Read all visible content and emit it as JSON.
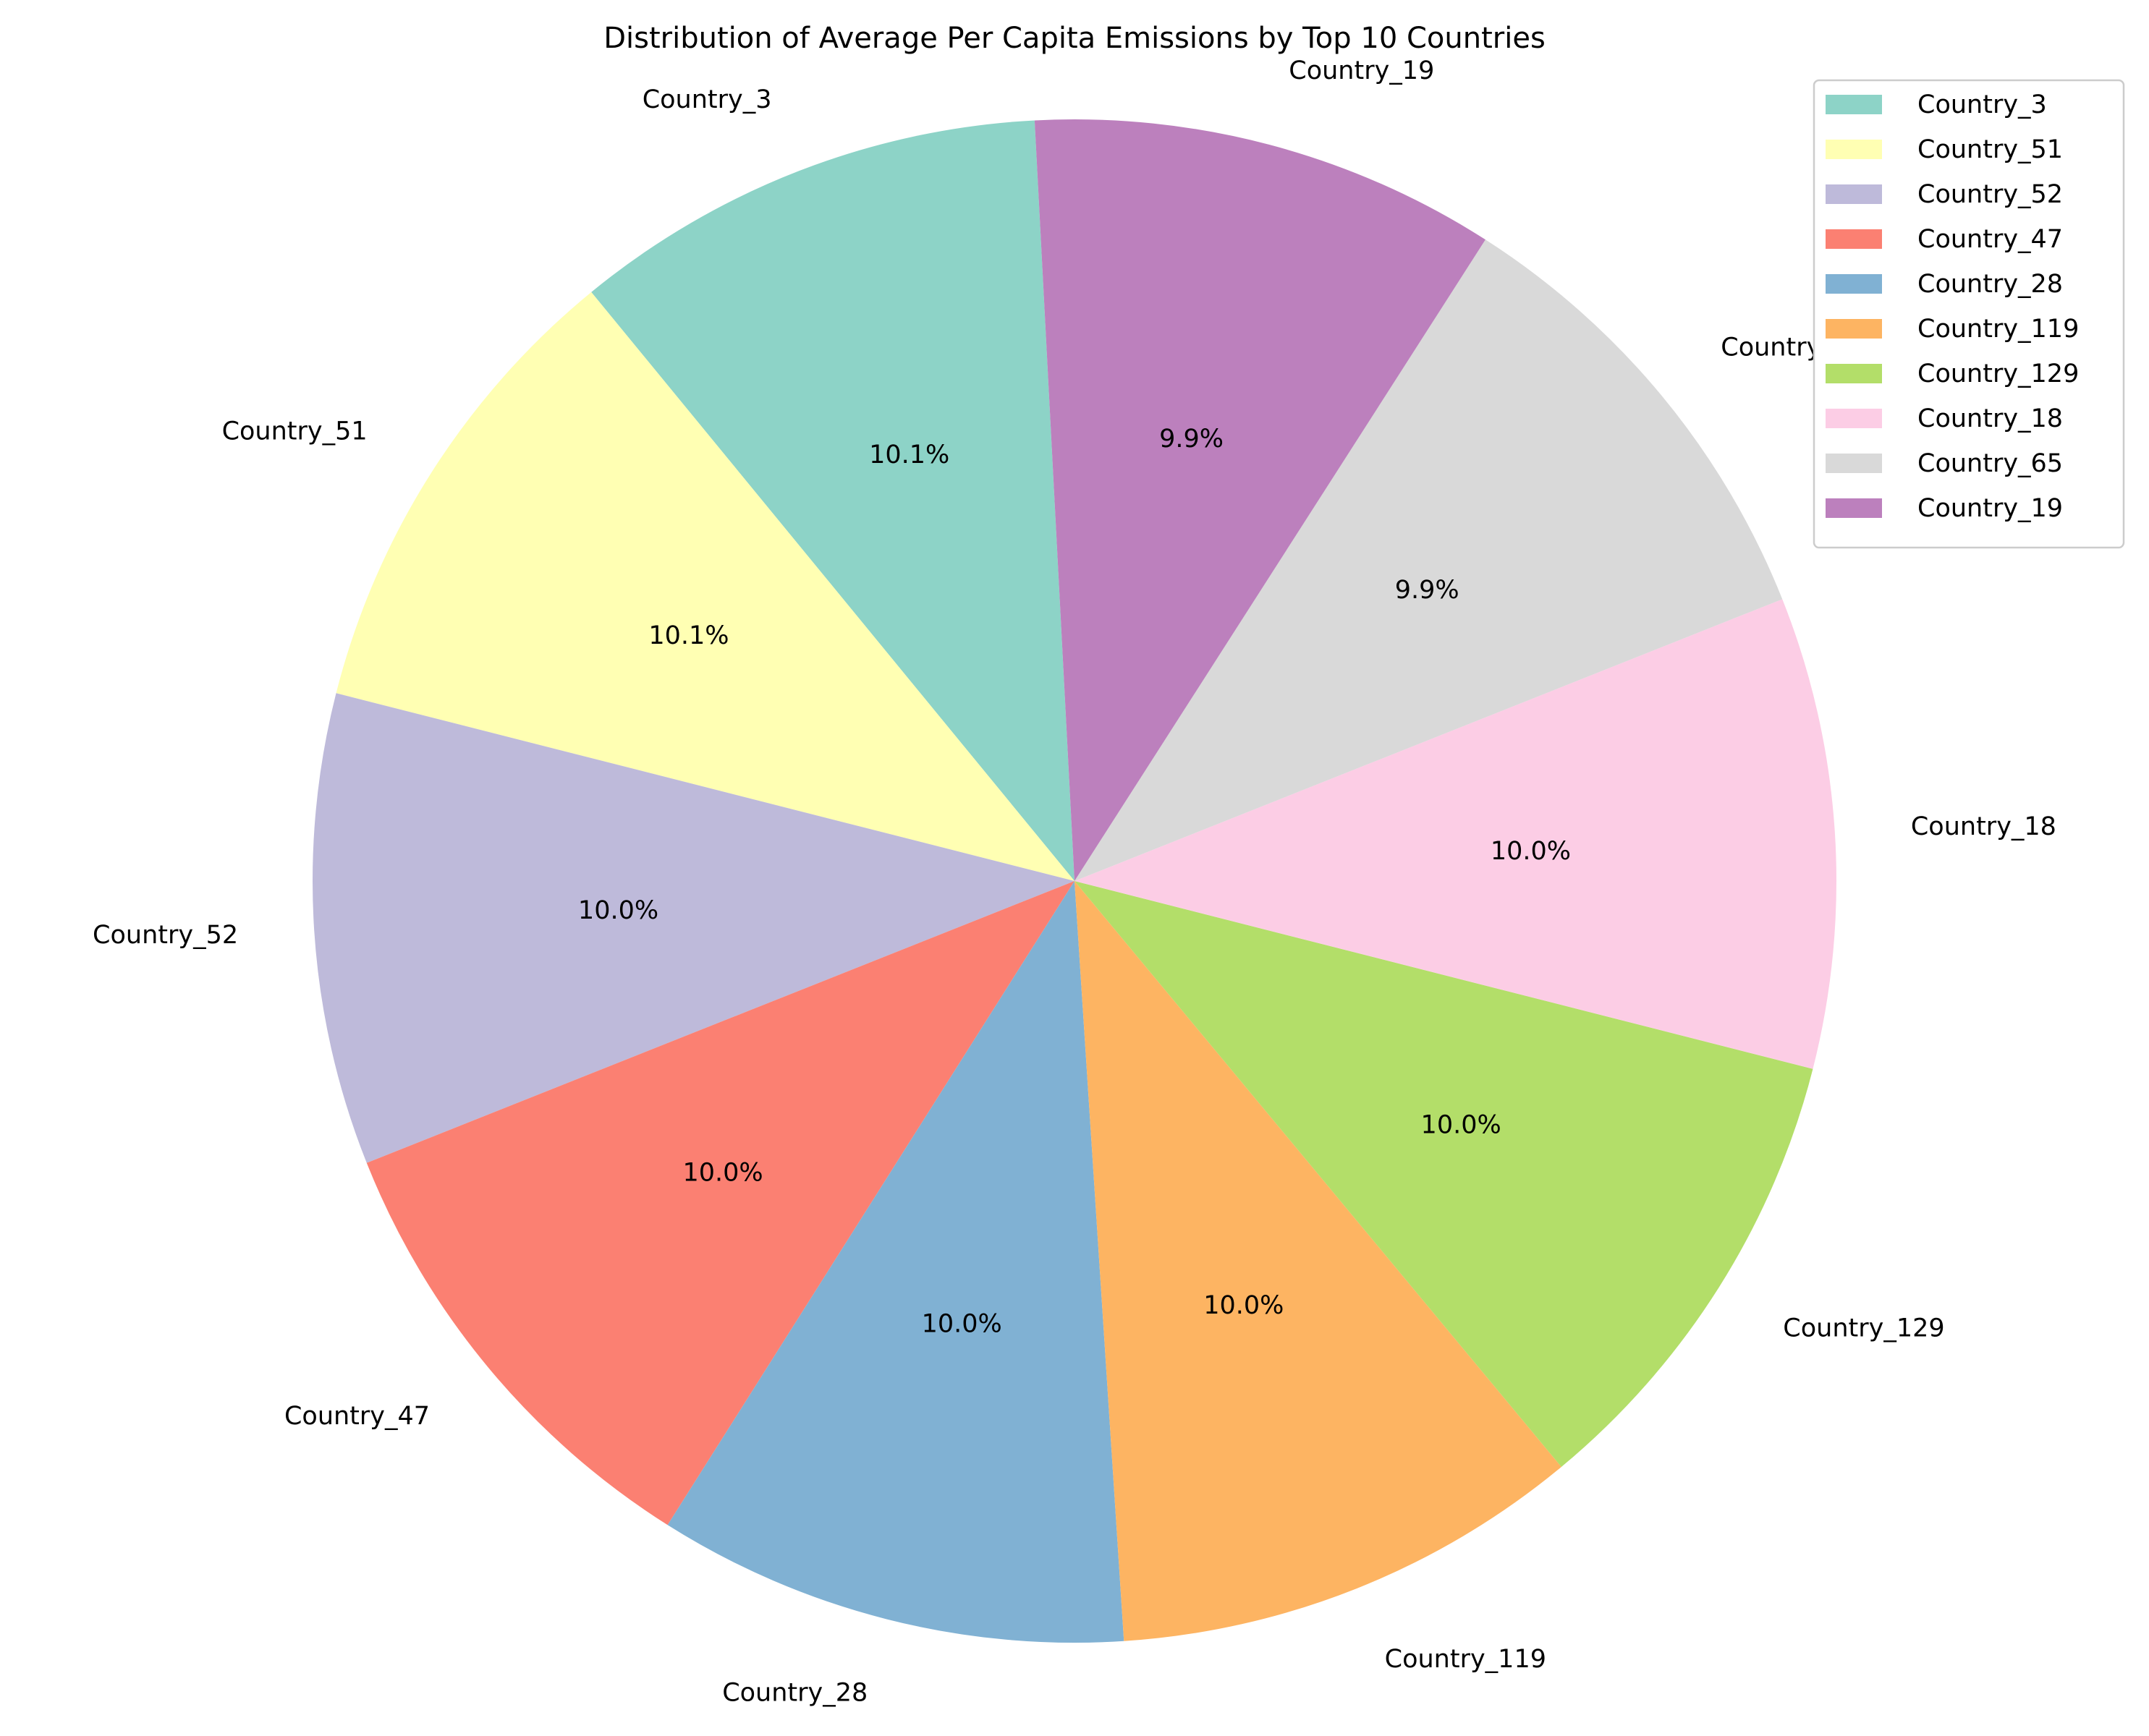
{
  "chart_data": {
    "type": "pie",
    "title": "Distribution of Average Per Capita Emissions by Top 10 Countries",
    "categories": [
      "Country_3",
      "Country_51",
      "Country_52",
      "Country_47",
      "Country_28",
      "Country_119",
      "Country_129",
      "Country_18",
      "Country_65",
      "Country_19"
    ],
    "values": [
      10.1,
      10.1,
      10.0,
      10.0,
      10.0,
      10.0,
      10.0,
      10.0,
      9.9,
      9.9
    ],
    "value_labels": [
      "10.1%",
      "10.1%",
      "10.0%",
      "10.0%",
      "10.0%",
      "10.0%",
      "10.0%",
      "10.0%",
      "9.9%",
      "9.9%"
    ],
    "colors": [
      "#8dd3c7",
      "#ffffb3",
      "#bebada",
      "#fb8072",
      "#80b1d3",
      "#fdb462",
      "#b3de69",
      "#fccde5",
      "#d9d9d9",
      "#bc80bd"
    ],
    "start_angle_deg": 93,
    "direction": "counterclockwise",
    "legend_position": "top-right"
  }
}
